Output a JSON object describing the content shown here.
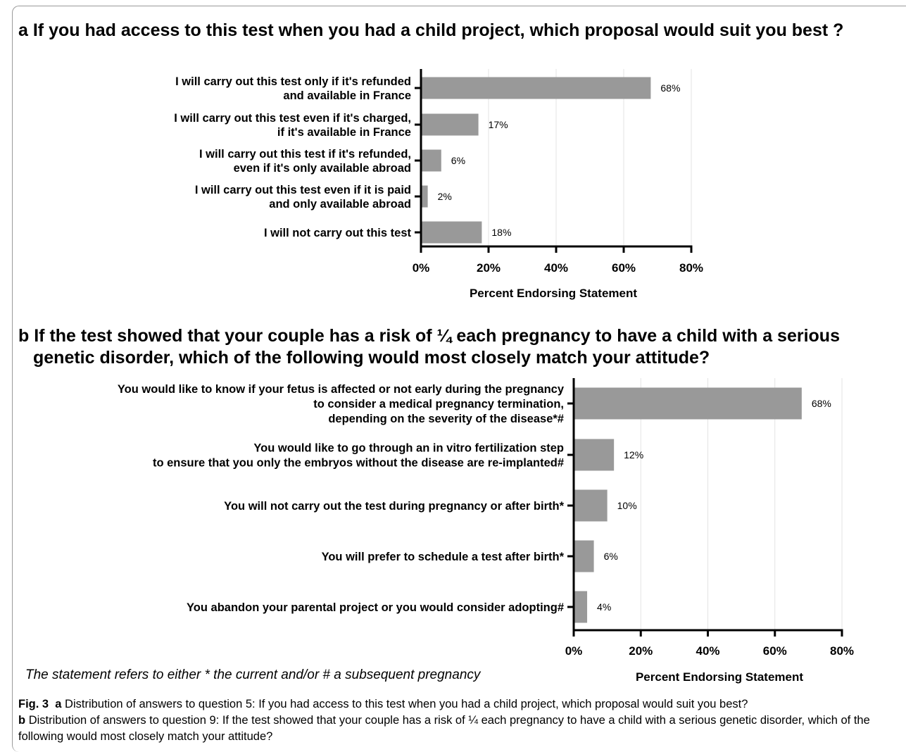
{
  "figure": {
    "note": "The statement refers to either * the current and/or # a subsequent pregnancy",
    "caption": {
      "fig_label": "Fig. 3",
      "a_label": "a",
      "a_text": "Distribution of answers to question 5: If you had access to this test when you had a child project, which proposal would suit you best?",
      "b_label": "b",
      "b_text": "Distribution of answers to question 9: If the test showed that your couple has a risk of ¼ each pregnancy to have a child with a serious genetic disorder, which of the following would most closely match your attitude?"
    }
  },
  "chart_data": [
    {
      "type": "bar",
      "orientation": "horizontal",
      "panel": "a",
      "title": "If you had access to this test when you had a child project, which proposal would suit you best ?",
      "categories": [
        [
          "I will carry out this test only if it's refunded",
          "and available in France"
        ],
        [
          "I will carry out this test even if it's charged,",
          "if it's available in France"
        ],
        [
          "I will carry out this test if it's refunded,",
          "even if it's only available abroad"
        ],
        [
          "I will carry out this test even if it is paid",
          "and only available abroad"
        ],
        [
          "I will not carry out this test"
        ]
      ],
      "values": [
        68,
        17,
        6,
        2,
        18
      ],
      "value_labels": [
        "68%",
        "17%",
        "6%",
        "2%",
        "18%"
      ],
      "xlabel": "Percent Endorsing Statement",
      "xlim": [
        0,
        80
      ],
      "xticks": [
        "0%",
        "20%",
        "40%",
        "60%",
        "80%"
      ],
      "bar_color": "#999999",
      "grid": true
    },
    {
      "type": "bar",
      "orientation": "horizontal",
      "panel": "b",
      "title": [
        "If the test showed that your couple has a risk of ¼ each pregnancy to have a child with a serious",
        "genetic disorder, which of the following would most closely match your attitude?"
      ],
      "categories": [
        [
          "You would like to know if your fetus is affected or not early during the pregnancy",
          "to consider a medical pregnancy termination,",
          "depending on the severity of the disease*#"
        ],
        [
          "You would like to go through an in vitro fertilization step",
          "to ensure that you only the embryos without the disease are re-implanted#"
        ],
        [
          "You will not carry out the test during pregnancy or after birth*"
        ],
        [
          "You will prefer to schedule a test after birth*"
        ],
        [
          "You abandon your parental project or you would consider adopting#"
        ]
      ],
      "values": [
        68,
        12,
        10,
        6,
        4
      ],
      "value_labels": [
        "68%",
        "12%",
        "10%",
        "6%",
        "4%"
      ],
      "xlabel": "Percent Endorsing Statement",
      "xlim": [
        0,
        80
      ],
      "xticks": [
        "0%",
        "20%",
        "40%",
        "60%",
        "80%"
      ],
      "bar_color": "#999999",
      "grid": true
    }
  ]
}
